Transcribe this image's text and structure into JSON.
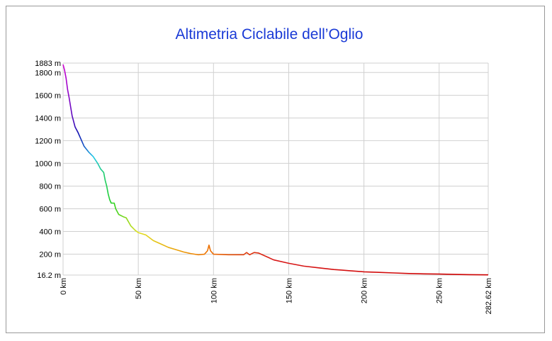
{
  "chart_data": {
    "type": "line",
    "title": "Altimetria Ciclabile dell’Oglio",
    "xlim": [
      0,
      282.62
    ],
    "ylim": [
      16.2,
      1883
    ],
    "xticks": [
      {
        "value": 0,
        "label": "0 km"
      },
      {
        "value": 50,
        "label": "50 km"
      },
      {
        "value": 100,
        "label": "100 km"
      },
      {
        "value": 150,
        "label": "150 km"
      },
      {
        "value": 200,
        "label": "200 km"
      },
      {
        "value": 250,
        "label": "250 km"
      },
      {
        "value": 282.62,
        "label": "282.62 km"
      }
    ],
    "yticks": [
      {
        "value": 16.2,
        "label": "16.2 m"
      },
      {
        "value": 200,
        "label": "200 m"
      },
      {
        "value": 400,
        "label": "400 m"
      },
      {
        "value": 600,
        "label": "600 m"
      },
      {
        "value": 800,
        "label": "800 m"
      },
      {
        "value": 1000,
        "label": "1000 m"
      },
      {
        "value": 1200,
        "label": "1200 m"
      },
      {
        "value": 1400,
        "label": "1400 m"
      },
      {
        "value": 1600,
        "label": "1600 m"
      },
      {
        "value": 1800,
        "label": "1800 m"
      },
      {
        "value": 1883,
        "label": "1883 m"
      }
    ],
    "grid": true,
    "x": [
      0,
      1,
      2,
      3,
      4,
      5,
      6,
      7,
      8,
      10,
      12,
      14,
      17,
      20,
      23,
      25,
      27,
      28,
      29,
      30,
      31,
      32,
      34,
      35,
      37,
      40,
      42,
      45,
      48,
      50,
      55,
      60,
      65,
      70,
      75,
      80,
      85,
      90,
      94,
      96,
      97,
      98,
      100,
      110,
      120,
      122,
      124,
      127,
      130,
      135,
      140,
      150,
      160,
      170,
      180,
      185,
      190,
      200,
      210,
      220,
      230,
      240,
      250,
      260,
      270,
      282.62
    ],
    "values": [
      1870,
      1820,
      1750,
      1650,
      1580,
      1500,
      1420,
      1370,
      1320,
      1270,
      1210,
      1150,
      1100,
      1060,
      1000,
      950,
      920,
      850,
      800,
      730,
      680,
      650,
      650,
      600,
      550,
      530,
      520,
      450,
      410,
      390,
      370,
      320,
      290,
      260,
      240,
      220,
      205,
      195,
      200,
      230,
      280,
      230,
      200,
      195,
      195,
      215,
      195,
      215,
      210,
      180,
      150,
      120,
      95,
      80,
      65,
      60,
      55,
      45,
      40,
      35,
      30,
      27,
      25,
      22,
      20,
      18
    ],
    "color_stops": [
      {
        "x": 0,
        "color": "#d400d4"
      },
      {
        "x": 10,
        "color": "#1010b0"
      },
      {
        "x": 20,
        "color": "#20c8e8"
      },
      {
        "x": 32,
        "color": "#20d020"
      },
      {
        "x": 50,
        "color": "#e0e020"
      },
      {
        "x": 90,
        "color": "#f08000"
      },
      {
        "x": 140,
        "color": "#d81818"
      },
      {
        "x": 282.62,
        "color": "#cc0000"
      }
    ]
  }
}
